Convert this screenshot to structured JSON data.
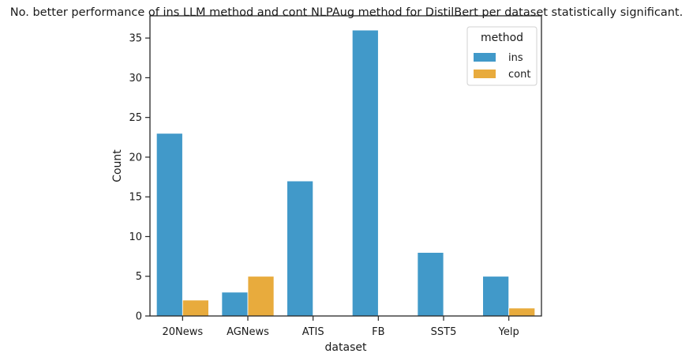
{
  "chart_data": {
    "type": "bar",
    "title": "No. better performance of ins LLM method and cont NLPAug method for DistilBert per dataset statistically significant.",
    "xlabel": "dataset",
    "ylabel": "Count",
    "categories": [
      "20News",
      "AGNews",
      "ATIS",
      "FB",
      "SST5",
      "Yelp"
    ],
    "series": [
      {
        "name": "ins",
        "color": "#4199c9",
        "values": [
          23,
          3,
          17,
          36,
          8,
          5
        ]
      },
      {
        "name": "cont",
        "color": "#e8ab3d",
        "values": [
          2,
          5,
          0,
          0,
          0,
          1
        ]
      }
    ],
    "ylim": [
      0,
      37.8
    ],
    "yticks": [
      0,
      5,
      10,
      15,
      20,
      25,
      30,
      35
    ],
    "grid": false,
    "legend": {
      "title": "method",
      "position": "top-right"
    }
  }
}
